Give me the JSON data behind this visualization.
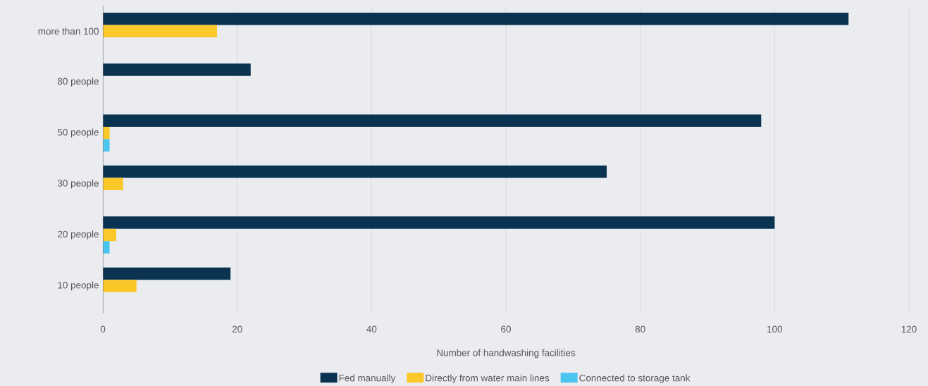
{
  "chart_data": {
    "type": "bar",
    "orientation": "horizontal",
    "xlabel": "Number of handwashing facilities",
    "categories": [
      "more than 100",
      "80 people",
      "50 people",
      "30 people",
      "20 people",
      "10 people"
    ],
    "series": [
      {
        "name": "Fed manually",
        "color": "#0a3351",
        "values": [
          111,
          22,
          98,
          75,
          100,
          19
        ]
      },
      {
        "name": "Directly from water main lines",
        "color": "#fbc82a",
        "values": [
          17,
          0,
          1,
          3,
          2,
          5
        ]
      },
      {
        "name": "Connected to storage tank",
        "color": "#4bc4ef",
        "values": [
          0,
          0,
          1,
          0,
          1,
          0
        ]
      }
    ],
    "xlim": [
      0,
      120
    ],
    "xticks": [
      0,
      20,
      40,
      60,
      80,
      100,
      120
    ],
    "grid": "x",
    "legend": "bottom"
  }
}
